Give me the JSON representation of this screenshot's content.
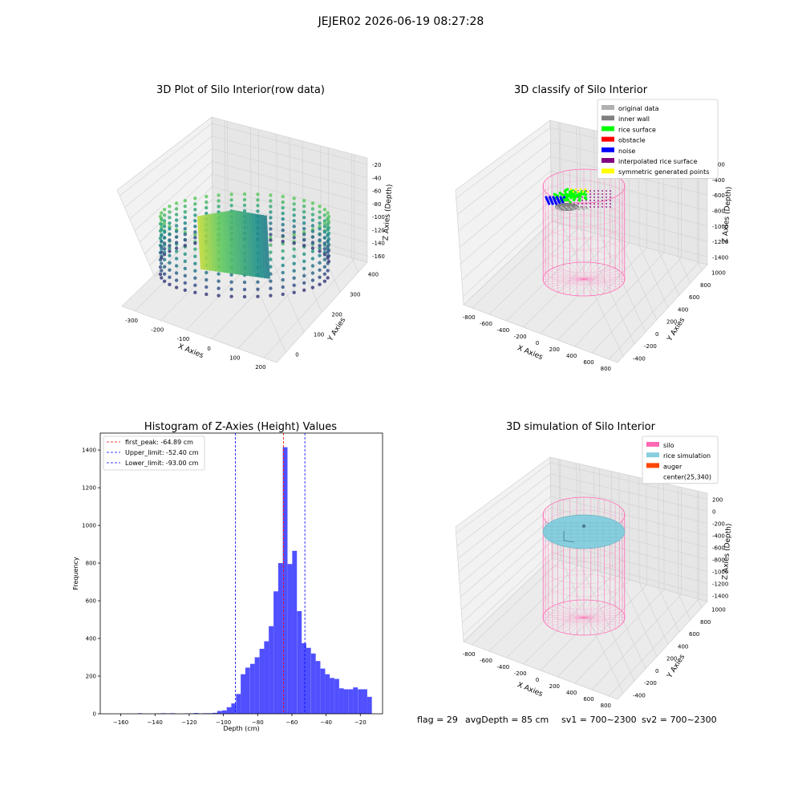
{
  "suptitle": "JEJER02 2026-06-19 08:27:28",
  "footer": {
    "flag": "flag = 29",
    "avgdepth": "avgDepth = 85 cm",
    "sv1": "sv1 = 700~2300",
    "sv2": "sv2 = 700~2300"
  },
  "colors": {
    "bar": "#5050ff",
    "peak_line": "#ff0000",
    "limit_line": "#0000ff",
    "silo": "#ff69b4",
    "rice_sim": "#87cedf",
    "auger": "#ff4500",
    "pane_left": "#f2f2f2",
    "pane_right": "#e6e6e6",
    "pane_floor": "#ebebeb"
  },
  "chart_data": [
    {
      "type": "scatter",
      "title": "3D Plot of Silo Interior(row data)",
      "xlabel": "X Axies",
      "ylabel": "Y Axies",
      "zlabel": "Z Axies (Depth)",
      "x_ticks": [
        "-300",
        "-200",
        "-100",
        "0",
        "100",
        "200"
      ],
      "y_ticks": [
        "0",
        "100",
        "200",
        "300",
        "400"
      ],
      "z_ticks": [
        "-20",
        "-40",
        "-60",
        "-80",
        "-100",
        "-120",
        "-140",
        "-160"
      ],
      "colormap": "viridis"
    },
    {
      "type": "scatter",
      "title": "3D classify of Silo Interior",
      "xlabel": "X Axies",
      "ylabel": "Y Axies",
      "zlabel": "Z Axies (Depth)",
      "x_ticks": [
        "-800",
        "-600",
        "-400",
        "-200",
        "0",
        "200",
        "400",
        "600",
        "800"
      ],
      "y_ticks": [
        "-400",
        "-200",
        "0",
        "200",
        "400",
        "600",
        "800",
        "1000"
      ],
      "z_ticks": [
        "-200",
        "-400",
        "-600",
        "-800",
        "-1000",
        "-1200",
        "-1400"
      ],
      "legend": [
        {
          "label": "original data",
          "color": "#b0b0b0"
        },
        {
          "label": "inner wall",
          "color": "#808080"
        },
        {
          "label": "rice surface",
          "color": "#00ff00"
        },
        {
          "label": "obstacle",
          "color": "#ff0000"
        },
        {
          "label": "noise",
          "color": "#0000ff"
        },
        {
          "label": "interpolated rice surface",
          "color": "#800080"
        },
        {
          "label": "symmetric generated points",
          "color": "#ffff00"
        }
      ]
    },
    {
      "type": "bar",
      "title": "Histogram of Z-Axies (Height) Values",
      "xlabel": "Depth (cm)",
      "ylabel": "Frequency",
      "xlim": [
        -172,
        -7
      ],
      "ylim": [
        0,
        1490
      ],
      "x_ticks": [
        -160,
        -140,
        -120,
        -100,
        -80,
        -60,
        -40,
        -20
      ],
      "y_ticks": [
        0,
        200,
        400,
        600,
        800,
        1000,
        1200,
        1400
      ],
      "bin_width": 2.74,
      "bins": [
        [
          -150.2,
          3
        ],
        [
          -139.2,
          2
        ],
        [
          -136.5,
          3
        ],
        [
          -133.7,
          2
        ],
        [
          -131.0,
          3
        ],
        [
          -122.8,
          2
        ],
        [
          -120.0,
          2
        ],
        [
          -117.3,
          4
        ],
        [
          -114.5,
          2
        ],
        [
          -111.8,
          3
        ],
        [
          -109.1,
          3
        ],
        [
          -106.3,
          5
        ],
        [
          -103.6,
          15
        ],
        [
          -100.8,
          18
        ],
        [
          -98.1,
          35
        ],
        [
          -95.4,
          55
        ],
        [
          -92.6,
          105
        ],
        [
          -89.9,
          210
        ],
        [
          -87.2,
          245
        ],
        [
          -84.4,
          265
        ],
        [
          -81.7,
          300
        ],
        [
          -78.9,
          345
        ],
        [
          -76.2,
          385
        ],
        [
          -73.5,
          465
        ],
        [
          -70.7,
          650
        ],
        [
          -68.0,
          800
        ],
        [
          -65.3,
          1415
        ],
        [
          -62.5,
          795
        ],
        [
          -59.8,
          865
        ],
        [
          -57.0,
          545
        ],
        [
          -54.3,
          375
        ],
        [
          -51.6,
          350
        ],
        [
          -48.8,
          320
        ],
        [
          -46.1,
          280
        ],
        [
          -43.3,
          240
        ],
        [
          -40.6,
          210
        ],
        [
          -37.9,
          190
        ],
        [
          -35.1,
          185
        ],
        [
          -32.4,
          135
        ],
        [
          -29.7,
          130
        ],
        [
          -26.9,
          130
        ],
        [
          -24.2,
          140
        ],
        [
          -21.4,
          130
        ],
        [
          -18.7,
          130
        ],
        [
          -16.0,
          90
        ]
      ],
      "vlines": [
        {
          "label": "first_peak: -64.89 cm",
          "value": -64.89,
          "color": "#ff0000"
        },
        {
          "label": "Upper_limit: -52.40 cm",
          "value": -52.4,
          "color": "#0000ff"
        },
        {
          "label": "Lower_limit: -93.00 cm",
          "value": -93.0,
          "color": "#0000ff"
        }
      ]
    },
    {
      "type": "scatter",
      "title": "3D simulation of Silo Interior",
      "xlabel": "X Axies",
      "ylabel": "Y Axies",
      "zlabel": "Z Axies (Depth)",
      "x_ticks": [
        "-800",
        "-600",
        "-400",
        "-200",
        "0",
        "200",
        "400",
        "600",
        "800"
      ],
      "y_ticks": [
        "-400",
        "-200",
        "0",
        "200",
        "400",
        "600",
        "800",
        "1000"
      ],
      "z_ticks": [
        "200",
        "0",
        "-200",
        "-400",
        "-600",
        "-800",
        "-1000",
        "-1200",
        "-1400"
      ],
      "legend": [
        {
          "label": "silo",
          "color": "#ff69b4"
        },
        {
          "label": "rice simulation",
          "color": "#87cedf"
        },
        {
          "label": "auger",
          "color": "#ff4500"
        },
        {
          "label": "center(25,340)",
          "color": ""
        }
      ]
    }
  ]
}
